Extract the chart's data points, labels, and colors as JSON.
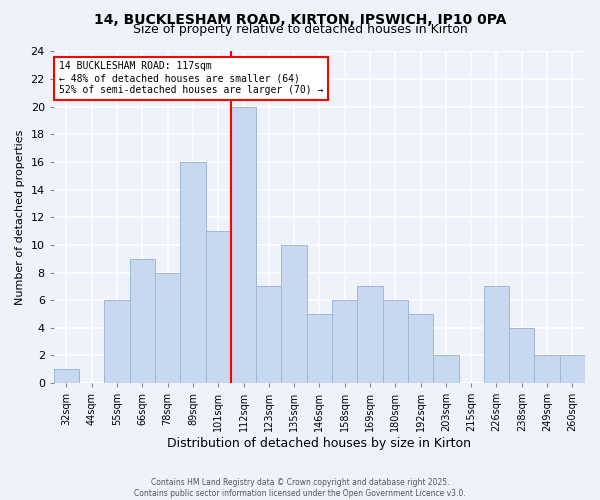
{
  "title": "14, BUCKLESHAM ROAD, KIRTON, IPSWICH, IP10 0PA",
  "subtitle": "Size of property relative to detached houses in Kirton",
  "xlabel": "Distribution of detached houses by size in Kirton",
  "ylabel": "Number of detached properties",
  "bin_labels": [
    "32sqm",
    "44sqm",
    "55sqm",
    "66sqm",
    "78sqm",
    "89sqm",
    "101sqm",
    "112sqm",
    "123sqm",
    "135sqm",
    "146sqm",
    "158sqm",
    "169sqm",
    "180sqm",
    "192sqm",
    "203sqm",
    "215sqm",
    "226sqm",
    "238sqm",
    "249sqm",
    "260sqm"
  ],
  "bar_heights": [
    1,
    0,
    6,
    9,
    8,
    16,
    11,
    20,
    7,
    10,
    5,
    6,
    7,
    6,
    5,
    2,
    0,
    7,
    4,
    2,
    2
  ],
  "bar_color": "#c8d8f0",
  "bar_edge_color": "#a0b8d8",
  "background_color": "#eef2fb",
  "grid_color": "#ffffff",
  "vline_color": "red",
  "vline_bin_index": 7,
  "annotation_title": "14 BUCKLESHAM ROAD: 117sqm",
  "annotation_line1": "← 48% of detached houses are smaller (64)",
  "annotation_line2": "52% of semi-detached houses are larger (70) →",
  "annotation_box_color": "white",
  "annotation_box_edge": "red",
  "ylim": [
    0,
    24
  ],
  "yticks": [
    0,
    2,
    4,
    6,
    8,
    10,
    12,
    14,
    16,
    18,
    20,
    22,
    24
  ],
  "footer1": "Contains HM Land Registry data © Crown copyright and database right 2025.",
  "footer2": "Contains public sector information licensed under the Open Government Licence v3.0."
}
